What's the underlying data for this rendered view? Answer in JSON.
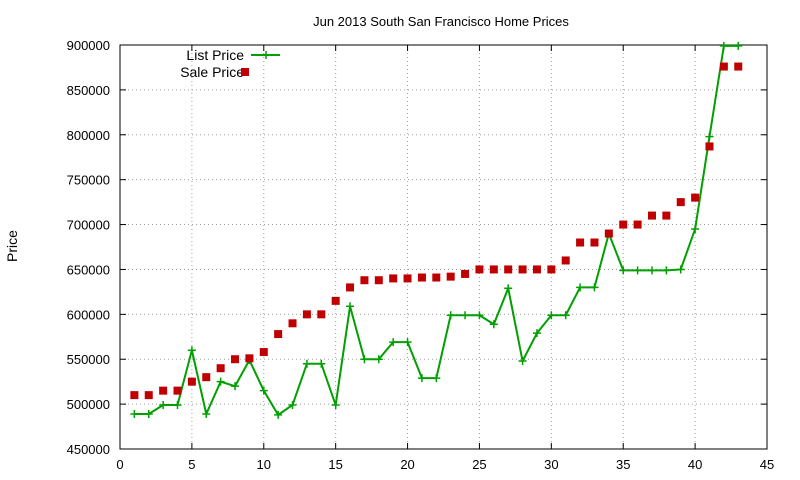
{
  "chart_data": {
    "type": "line",
    "title": "Jun 2013 South San Francisco Home Prices",
    "xlabel": "",
    "ylabel": "Price",
    "xlim": [
      0,
      45
    ],
    "ylim": [
      450000,
      900000
    ],
    "xticks": [
      0,
      5,
      10,
      15,
      20,
      25,
      30,
      35,
      40,
      45
    ],
    "yticks": [
      450000,
      500000,
      550000,
      600000,
      650000,
      700000,
      750000,
      800000,
      850000,
      900000
    ],
    "grid": true,
    "legend_position": "top-left",
    "series": [
      {
        "name": "List Price",
        "style": "line-with-plus-markers",
        "color": "#00a000",
        "x": [
          1,
          2,
          3,
          4,
          5,
          6,
          7,
          8,
          9,
          10,
          11,
          12,
          13,
          14,
          15,
          16,
          17,
          18,
          19,
          20,
          21,
          22,
          23,
          24,
          25,
          26,
          27,
          28,
          29,
          30,
          31,
          32,
          33,
          34,
          35,
          36,
          37,
          38,
          39,
          40,
          41,
          42,
          43
        ],
        "y": [
          489000,
          489000,
          499000,
          499000,
          560000,
          489000,
          525000,
          520000,
          549000,
          515000,
          488000,
          499000,
          545000,
          545000,
          499000,
          609000,
          550000,
          550000,
          569000,
          569000,
          529000,
          529000,
          599000,
          599000,
          599000,
          589000,
          629000,
          548000,
          579000,
          599000,
          599000,
          630000,
          630000,
          690000,
          649000,
          649000,
          649000,
          649000,
          650000,
          695000,
          798000,
          899000,
          899000
        ]
      },
      {
        "name": "Sale Price",
        "style": "square-markers",
        "color": "#c00000",
        "x": [
          1,
          2,
          3,
          4,
          5,
          6,
          7,
          8,
          9,
          10,
          11,
          12,
          13,
          14,
          15,
          16,
          17,
          18,
          19,
          20,
          21,
          22,
          23,
          24,
          25,
          26,
          27,
          28,
          29,
          30,
          31,
          32,
          33,
          34,
          35,
          36,
          37,
          38,
          39,
          40,
          41,
          42,
          43
        ],
        "y": [
          510000,
          510000,
          515000,
          515000,
          525000,
          530000,
          540000,
          550000,
          551000,
          558000,
          578000,
          590000,
          600000,
          600000,
          615000,
          630000,
          638000,
          638000,
          640000,
          640000,
          641000,
          641000,
          642000,
          645000,
          650000,
          650000,
          650000,
          650000,
          650000,
          650000,
          660000,
          680000,
          680000,
          690000,
          700000,
          700000,
          710000,
          710000,
          725000,
          730000,
          787000,
          876000,
          876000
        ]
      }
    ]
  }
}
